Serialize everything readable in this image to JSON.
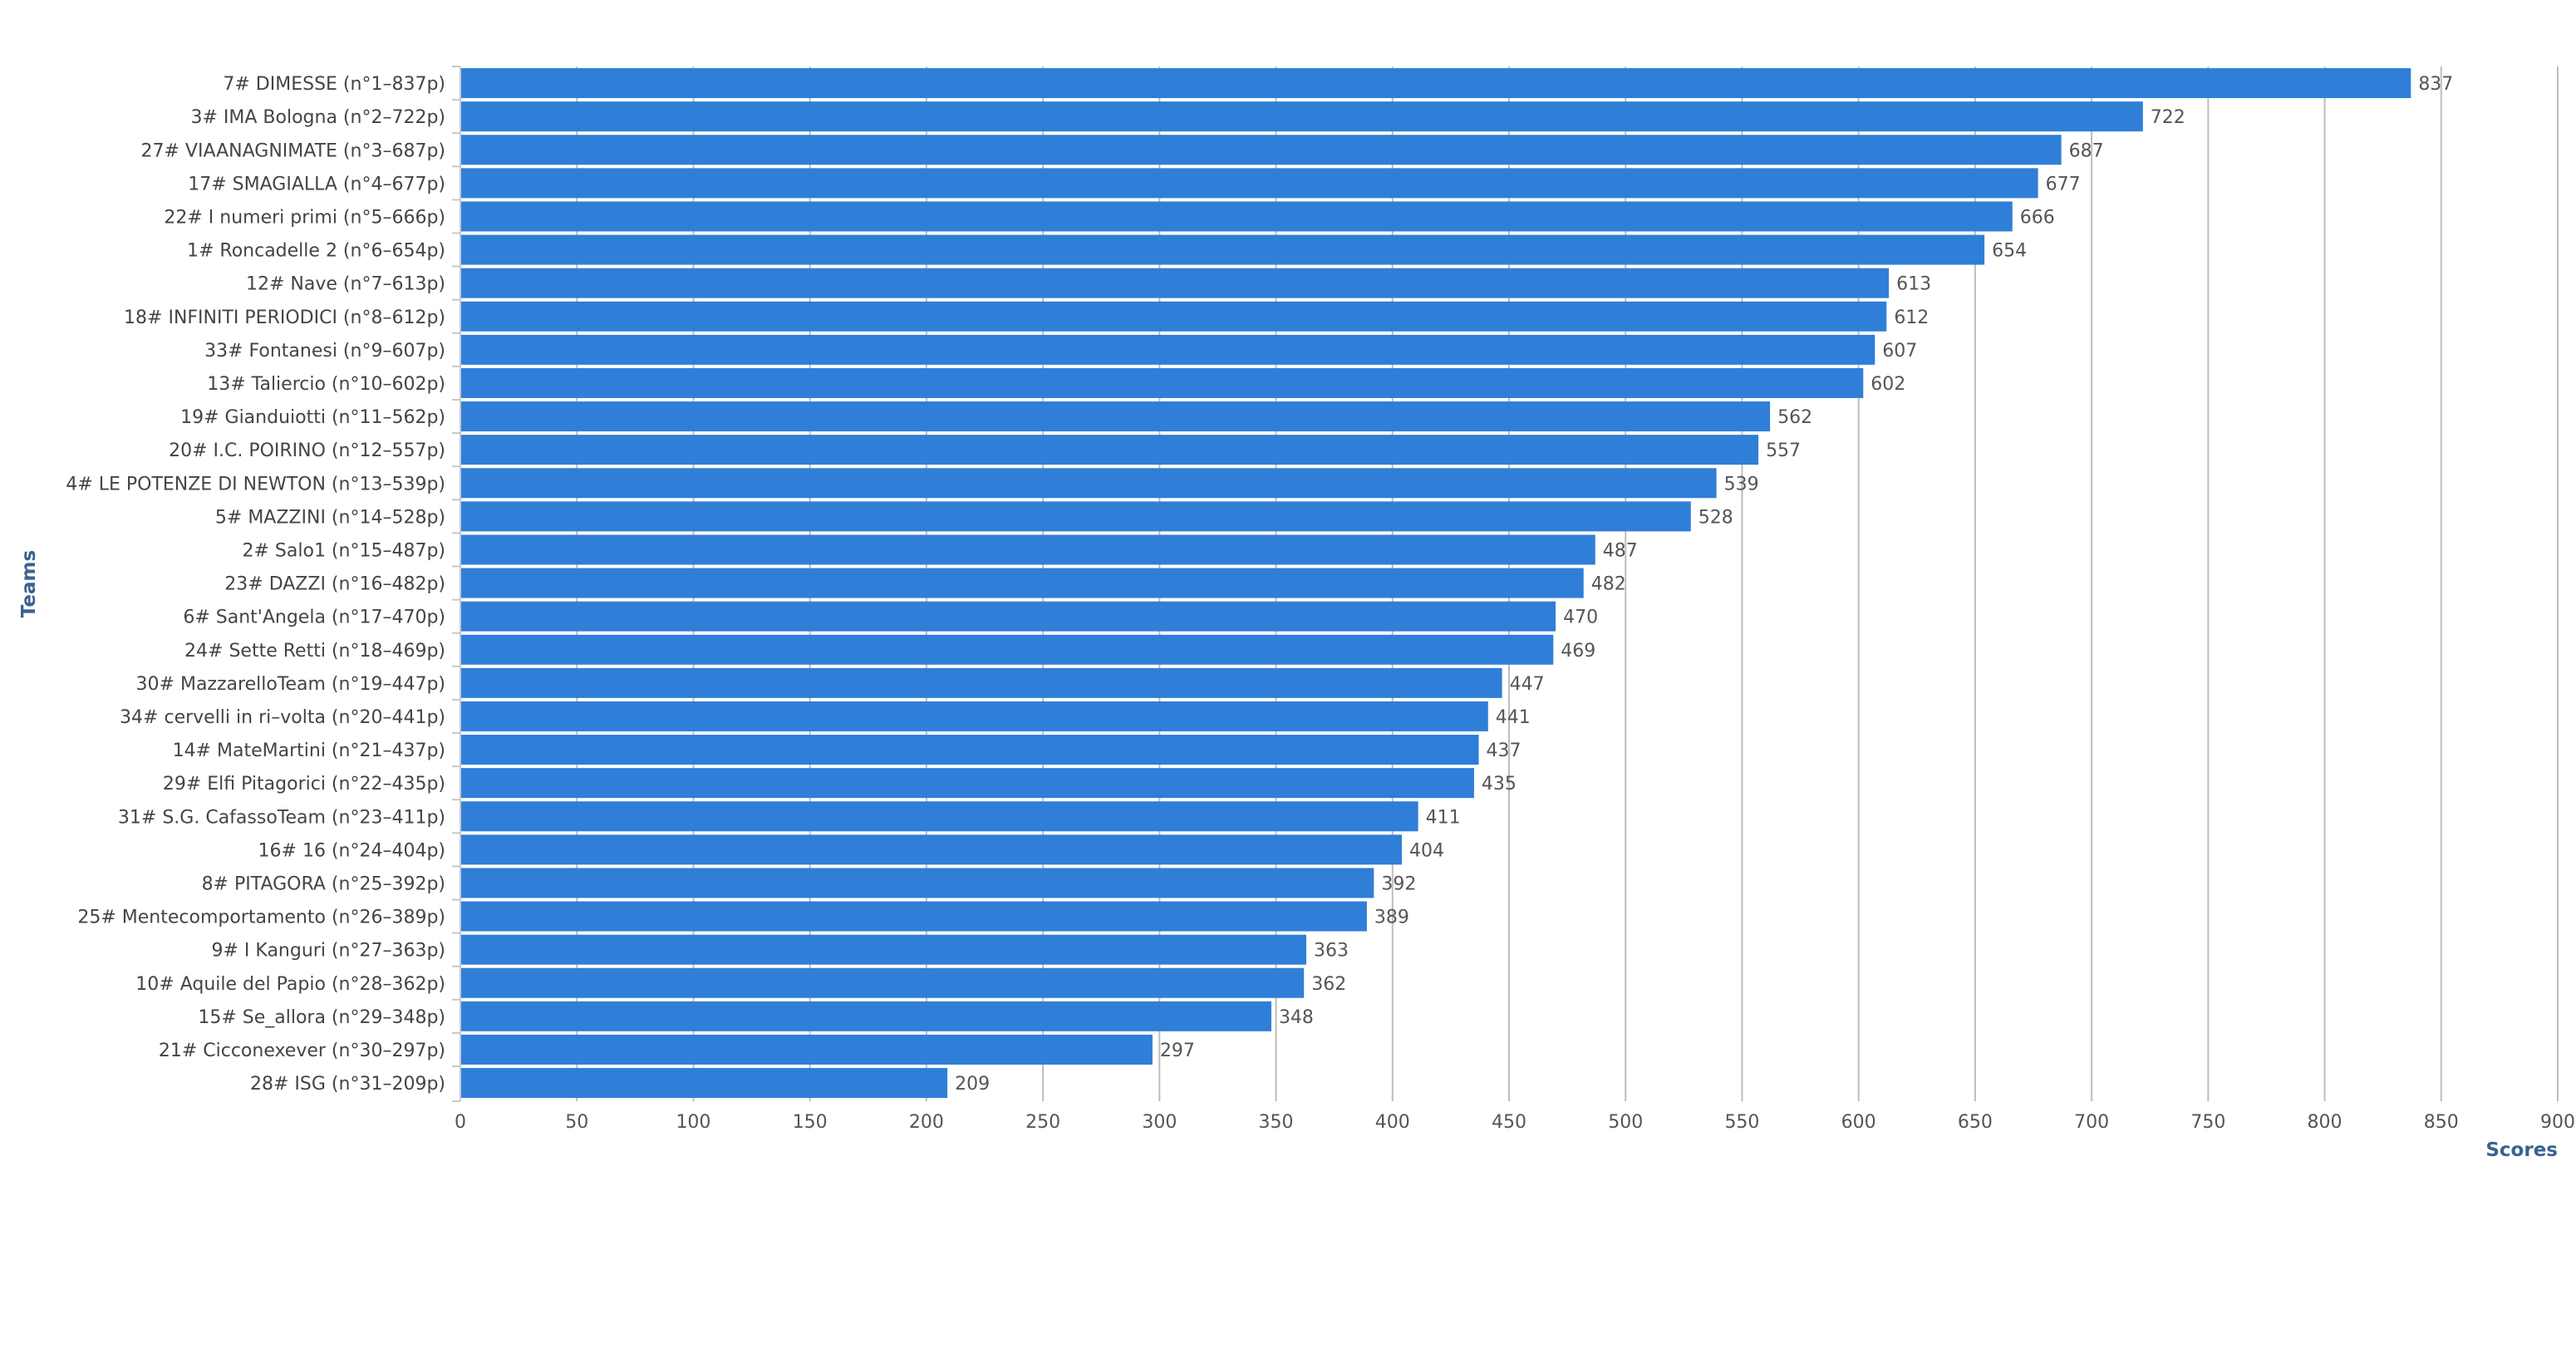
{
  "chart_data": {
    "type": "bar",
    "orientation": "horizontal",
    "categories": [
      "7# DIMESSE (n°1–837p)",
      "3# IMA Bologna (n°2–722p)",
      "27# VIAANAGNIMATE (n°3–687p)",
      "17# SMAGIALLA (n°4–677p)",
      "22# I numeri primi (n°5–666p)",
      "1# Roncadelle 2 (n°6–654p)",
      "12# Nave (n°7–613p)",
      "18# INFINITI PERIODICI (n°8–612p)",
      "33# Fontanesi (n°9–607p)",
      "13# Taliercio (n°10–602p)",
      "19# Gianduiotti (n°11–562p)",
      "20# I.C. POIRINO (n°12–557p)",
      "4# LE POTENZE DI NEWTON (n°13–539p)",
      "5# MAZZINI (n°14–528p)",
      "2# Salo1 (n°15–487p)",
      "23# DAZZI (n°16–482p)",
      "6# Sant'Angela (n°17–470p)",
      "24# Sette Retti (n°18–469p)",
      "30# MazzarelloTeam (n°19–447p)",
      "34# cervelli in ri–volta (n°20–441p)",
      "14# MateMartini (n°21–437p)",
      "29# Elfi Pitagorici (n°22–435p)",
      "31# S.G. CafassoTeam (n°23–411p)",
      "16# 16 (n°24–404p)",
      "8# PITAGORA (n°25–392p)",
      "25# Mentecomportamento (n°26–389p)",
      "9# I Kanguri (n°27–363p)",
      "10# Aquile del Papio (n°28–362p)",
      "15# Se_allora (n°29–348p)",
      "21# Cicconexever (n°30–297p)",
      "28# ISG (n°31–209p)"
    ],
    "values": [
      837,
      722,
      687,
      677,
      666,
      654,
      613,
      612,
      607,
      602,
      562,
      557,
      539,
      528,
      487,
      482,
      470,
      469,
      447,
      441,
      437,
      435,
      411,
      404,
      392,
      389,
      363,
      362,
      348,
      297,
      209
    ],
    "xlabel": "Scores",
    "ylabel": "Teams",
    "xlim": [
      0,
      900
    ],
    "xticks": [
      "0",
      "50",
      "100",
      "150",
      "200",
      "250",
      "300",
      "350",
      "400",
      "450",
      "500",
      "550",
      "600",
      "650",
      "700",
      "750",
      "800",
      "850",
      "900"
    ],
    "grid": true,
    "legend": "none",
    "bar_color": "#2f7ed8",
    "grid_color": "#bdbdbd",
    "title_color": "#3a6291"
  }
}
